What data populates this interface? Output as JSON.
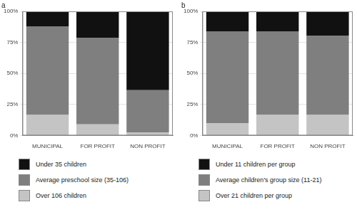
{
  "chart_data": [
    {
      "type": "bar",
      "title": "a",
      "stacked": true,
      "grid": true,
      "legend": "bottom",
      "categories": [
        "MUNICIPAL",
        "FOR PROFIT",
        "NON PROFIT"
      ],
      "series": [
        {
          "name": "Under 35 children",
          "color": "#111111",
          "values": [
            12,
            21.5,
            63.5
          ]
        },
        {
          "name": "Average preschool size (35-106)",
          "color": "#7f7f7f",
          "values": [
            71.5,
            69.5,
            34
          ]
        },
        {
          "name": "Over 106 children",
          "color": "#c4c4c4",
          "values": [
            16.5,
            9,
            2.5
          ]
        }
      ],
      "ylim": [
        0,
        100
      ],
      "yticks": [
        {
          "value": 0,
          "label": "0%"
        },
        {
          "value": 25,
          "label": "25%"
        },
        {
          "value": 50,
          "label": "50%"
        },
        {
          "value": 75,
          "label": "75%"
        },
        {
          "value": 100,
          "label": "100%"
        }
      ]
    },
    {
      "type": "bar",
      "title": "b",
      "stacked": true,
      "grid": true,
      "legend": "bottom",
      "categories": [
        "MUNICIPAL",
        "FOR PROFIT",
        "NON PROFIT"
      ],
      "series": [
        {
          "name": "Under 11 children per group",
          "color": "#111111",
          "values": [
            16,
            16,
            19.5
          ]
        },
        {
          "name": "Average children's group size (11-21)",
          "color": "#7f7f7f",
          "values": [
            74,
            67.5,
            64
          ]
        },
        {
          "name": "Over 21 children per group",
          "color": "#c4c4c4",
          "values": [
            10,
            16.5,
            16.5
          ]
        }
      ],
      "ylim": [
        0,
        100
      ],
      "yticks": [
        {
          "value": 0,
          "label": "0%"
        },
        {
          "value": 25,
          "label": "25%"
        },
        {
          "value": 50,
          "label": "50%"
        },
        {
          "value": 75,
          "label": "75%"
        },
        {
          "value": 100,
          "label": "100%"
        }
      ]
    }
  ]
}
